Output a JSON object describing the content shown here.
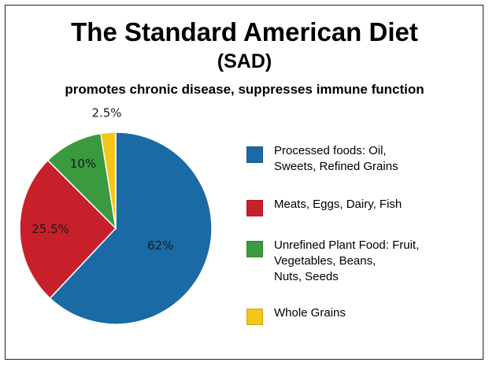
{
  "chart_data": {
    "type": "pie",
    "title": "The Standard American Diet",
    "title_line2": "(SAD)",
    "subtitle": "promotes chronic disease, suppresses immune function",
    "categories": [
      "Processed foods: Oil,\nSweets, Refined Grains",
      "Meats, Eggs, Dairy, Fish",
      "Unrefined Plant Food: Fruit,\nVegetables, Beans,\nNuts, Seeds",
      "Whole Grains"
    ],
    "values": [
      62,
      25.5,
      10,
      2.5
    ],
    "data_labels": [
      "62%",
      "25.5%",
      "10%",
      "2.5%"
    ],
    "colors": [
      "#1a6aa6",
      "#c8202a",
      "#3a9a40",
      "#f5c518"
    ],
    "legend_position": "right",
    "start": "12 o'clock, clockwise"
  }
}
